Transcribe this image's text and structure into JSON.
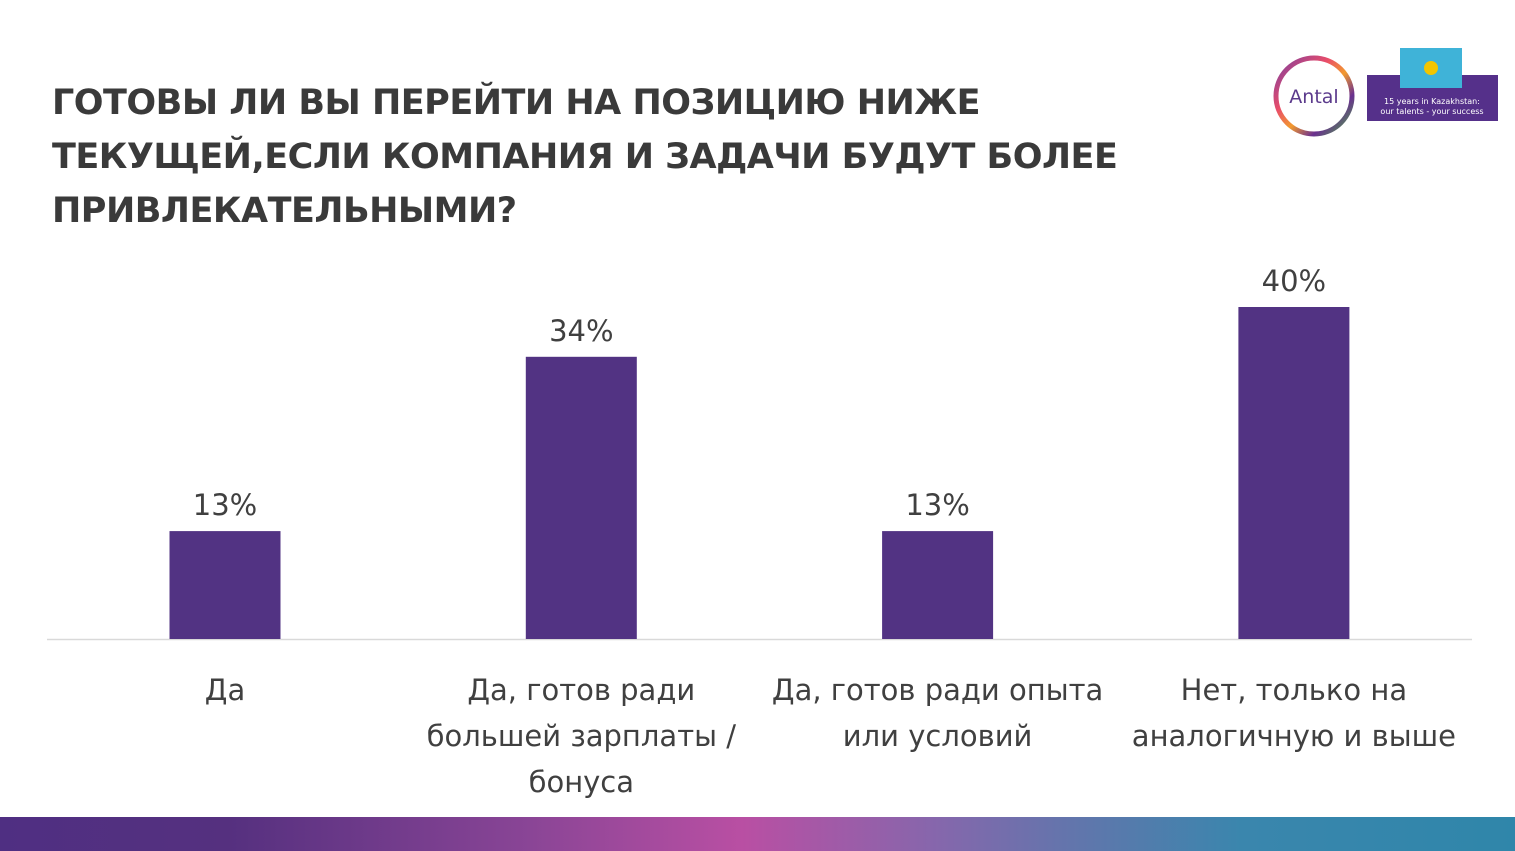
{
  "title": "ГОТОВЫ ЛИ ВЫ ПЕРЕЙТИ НА ПОЗИЦИЮ НИЖЕ ТЕКУЩЕЙ,ЕСЛИ КОМПАНИЯ И ЗАДАЧИ БУДУТ БОЛЕЕ ПРИВЛЕКАТЕЛЬНЫМИ?",
  "logo": {
    "brand": "Antal",
    "tagline_line1": "15 years in Kazakhstan:",
    "tagline_line2": "our talents - your success"
  },
  "colors": {
    "bar": "#523383",
    "axis": "#d9d9d9",
    "text": "#404040"
  },
  "chart_data": {
    "type": "bar",
    "title": "ГОТОВЫ ЛИ ВЫ ПЕРЕЙТИ НА ПОЗИЦИЮ НИЖЕ ТЕКУЩЕЙ,ЕСЛИ КОМПАНИЯ И ЗАДАЧИ БУДУТ БОЛЕЕ ПРИВЛЕКАТЕЛЬНЫМИ?",
    "categories": [
      "Да",
      "Да, готов ради большей зарплаты / бонуса",
      "Да, готов ради опыта или условий",
      "Нет, только на аналогичную и выше"
    ],
    "category_lines": [
      [
        "Да"
      ],
      [
        "Да, готов ради",
        "большей зарплаты /",
        "бонуса"
      ],
      [
        "Да, готов ради опыта",
        "или условий"
      ],
      [
        "Нет, только на",
        "аналогичную и выше"
      ]
    ],
    "values": [
      13,
      34,
      13,
      40
    ],
    "data_labels": [
      "13%",
      "34%",
      "13%",
      "40%"
    ],
    "unit": "%",
    "ylim": [
      0,
      40
    ],
    "grid": false,
    "legend": "none"
  }
}
